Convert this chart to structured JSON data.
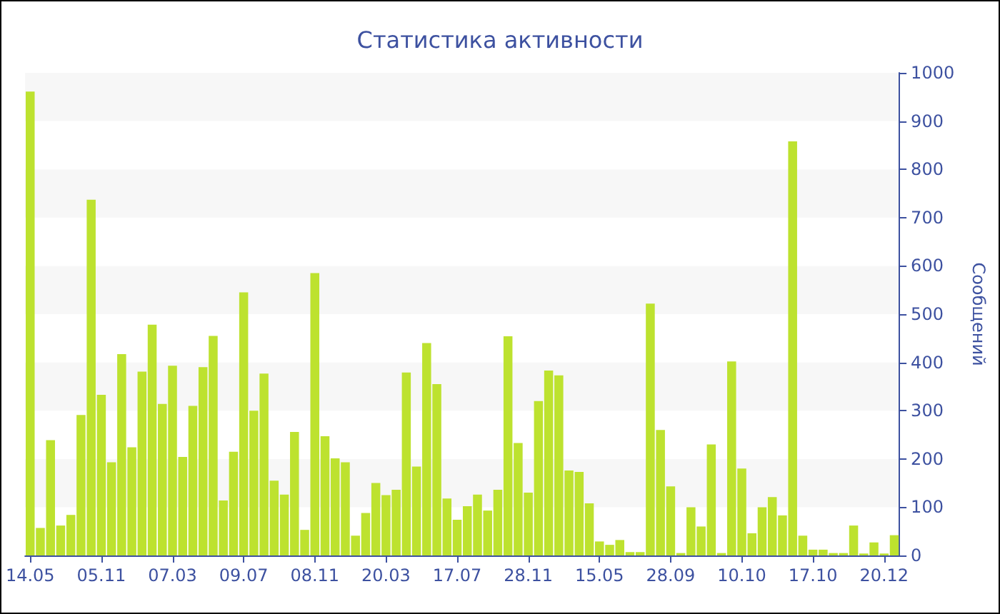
{
  "chart_data": {
    "type": "bar",
    "title": "Статистика активности",
    "y2label": "Сообщений",
    "categories": [
      "14.05",
      null,
      null,
      null,
      null,
      null,
      null,
      "05.11",
      null,
      null,
      null,
      null,
      null,
      null,
      "07.03",
      null,
      null,
      null,
      null,
      null,
      null,
      "09.07",
      null,
      null,
      null,
      null,
      null,
      null,
      "08.11",
      null,
      null,
      null,
      null,
      null,
      null,
      "20.03",
      null,
      null,
      null,
      null,
      null,
      null,
      "17.07",
      null,
      null,
      null,
      null,
      null,
      null,
      "28.11",
      null,
      null,
      null,
      null,
      null,
      null,
      "15.05",
      null,
      null,
      null,
      null,
      null,
      null,
      "28.09",
      null,
      null,
      null,
      null,
      null,
      null,
      "10.10",
      null,
      null,
      null,
      null,
      null,
      null,
      "17.10",
      null,
      null,
      null,
      null,
      null,
      null,
      "20.12",
      null
    ],
    "series": [
      {
        "color": "#bde22f",
        "axis": "y2",
        "values": [
          961,
          57,
          239,
          62,
          84,
          291,
          737,
          333,
          193,
          417,
          224,
          381,
          478,
          314,
          393,
          204,
          310,
          390,
          455,
          114,
          215,
          545,
          300,
          377,
          155,
          126,
          256,
          53,
          585,
          247,
          201,
          193,
          41,
          88,
          150,
          125,
          136,
          379,
          184,
          440,
          355,
          118,
          74,
          102,
          126,
          93,
          136,
          454,
          233,
          130,
          320,
          383,
          373,
          176,
          173,
          108,
          29,
          22,
          32,
          7,
          7,
          522,
          260,
          143,
          5,
          100,
          60,
          230,
          5,
          402,
          180,
          46,
          100,
          121,
          83,
          858,
          41,
          12,
          12,
          5,
          5,
          62,
          4,
          27,
          4,
          42
        ]
      }
    ],
    "y2lim": [
      0,
      1000
    ],
    "y2ticks": [
      0,
      100,
      200,
      300,
      400,
      500,
      600,
      700,
      800,
      900,
      1000
    ],
    "grid": false
  }
}
